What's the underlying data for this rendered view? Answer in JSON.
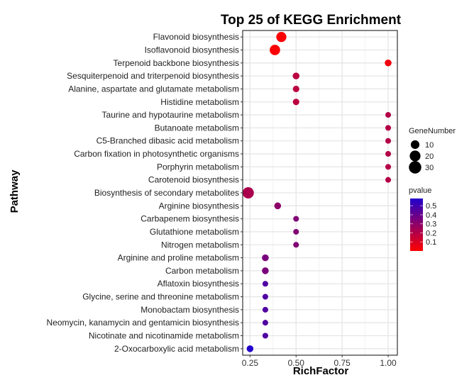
{
  "chart_data": {
    "type": "scatter",
    "title": "Top 25 of KEGG Enrichment",
    "xlabel": "RichFactor",
    "ylabel": "Pathway",
    "xlim": [
      0.21,
      1.05
    ],
    "xticks": [
      0.25,
      0.5,
      0.75,
      1.0
    ],
    "xtick_labels": [
      "0.25",
      "0.50",
      "0.75",
      "1.00"
    ],
    "grid": true,
    "legend_position": "right",
    "size_legend": {
      "title": "GeneNumber",
      "values": [
        10,
        20,
        30
      ],
      "labels": [
        "10",
        "20",
        "30"
      ]
    },
    "color_legend": {
      "title": "pvalue",
      "low_color": "#ff0000",
      "high_color": "#2200cc",
      "range": [
        0.0,
        0.58
      ],
      "ticks": [
        0.5,
        0.4,
        0.3,
        0.2,
        0.1
      ],
      "tick_labels": [
        "0.5",
        "0.4",
        "0.3",
        "0.2",
        "0.1"
      ]
    },
    "points": [
      {
        "pathway": "Flavonoid biosynthesis",
        "rich_factor": 0.42,
        "gene_number": 22,
        "pvalue": 0.01
      },
      {
        "pathway": "Isoflavonoid biosynthesis",
        "rich_factor": 0.385,
        "gene_number": 24,
        "pvalue": 0.01
      },
      {
        "pathway": "Terpenoid backbone biosynthesis",
        "rich_factor": 1.0,
        "gene_number": 6,
        "pvalue": 0.04
      },
      {
        "pathway": "Sesquiterpenoid and triterpenoid biosynthesis",
        "rich_factor": 0.5,
        "gene_number": 6,
        "pvalue": 0.18
      },
      {
        "pathway": "Alanine, aspartate and glutamate metabolism",
        "rich_factor": 0.5,
        "gene_number": 5,
        "pvalue": 0.18
      },
      {
        "pathway": "Histidine metabolism",
        "rich_factor": 0.5,
        "gene_number": 5,
        "pvalue": 0.18
      },
      {
        "pathway": "Taurine and hypotaurine metabolism",
        "rich_factor": 1.0,
        "gene_number": 3,
        "pvalue": 0.2
      },
      {
        "pathway": "Butanoate metabolism",
        "rich_factor": 1.0,
        "gene_number": 3,
        "pvalue": 0.2
      },
      {
        "pathway": "C5-Branched dibasic acid metabolism",
        "rich_factor": 1.0,
        "gene_number": 3,
        "pvalue": 0.2
      },
      {
        "pathway": "Carbon fixation in photosynthetic organisms",
        "rich_factor": 1.0,
        "gene_number": 3,
        "pvalue": 0.2
      },
      {
        "pathway": "Porphyrin metabolism",
        "rich_factor": 1.0,
        "gene_number": 3,
        "pvalue": 0.2
      },
      {
        "pathway": "Carotenoid biosynthesis",
        "rich_factor": 1.0,
        "gene_number": 3,
        "pvalue": 0.2
      },
      {
        "pathway": "Biosynthesis of secondary metabolites",
        "rich_factor": 0.24,
        "gene_number": 30,
        "pvalue": 0.22
      },
      {
        "pathway": "Arginine biosynthesis",
        "rich_factor": 0.4,
        "gene_number": 6,
        "pvalue": 0.3
      },
      {
        "pathway": "Carbapenem biosynthesis",
        "rich_factor": 0.5,
        "gene_number": 3,
        "pvalue": 0.33
      },
      {
        "pathway": "Glutathione metabolism",
        "rich_factor": 0.5,
        "gene_number": 3,
        "pvalue": 0.33
      },
      {
        "pathway": "Nitrogen metabolism",
        "rich_factor": 0.5,
        "gene_number": 3,
        "pvalue": 0.33
      },
      {
        "pathway": "Arginine and proline metabolism",
        "rich_factor": 0.333,
        "gene_number": 6,
        "pvalue": 0.35
      },
      {
        "pathway": "Carbon metabolism",
        "rich_factor": 0.333,
        "gene_number": 6,
        "pvalue": 0.35
      },
      {
        "pathway": "Aflatoxin biosynthesis",
        "rich_factor": 0.333,
        "gene_number": 3,
        "pvalue": 0.46
      },
      {
        "pathway": "Glycine, serine and threonine metabolism",
        "rich_factor": 0.333,
        "gene_number": 3,
        "pvalue": 0.46
      },
      {
        "pathway": "Monobactam biosynthesis",
        "rich_factor": 0.333,
        "gene_number": 3,
        "pvalue": 0.46
      },
      {
        "pathway": "Neomycin, kanamycin and gentamicin biosynthesis",
        "rich_factor": 0.333,
        "gene_number": 3,
        "pvalue": 0.46
      },
      {
        "pathway": "Nicotinate and nicotinamide metabolism",
        "rich_factor": 0.333,
        "gene_number": 3,
        "pvalue": 0.46
      },
      {
        "pathway": "2-Oxocarboxylic acid metabolism",
        "rich_factor": 0.25,
        "gene_number": 6,
        "pvalue": 0.58
      }
    ]
  }
}
